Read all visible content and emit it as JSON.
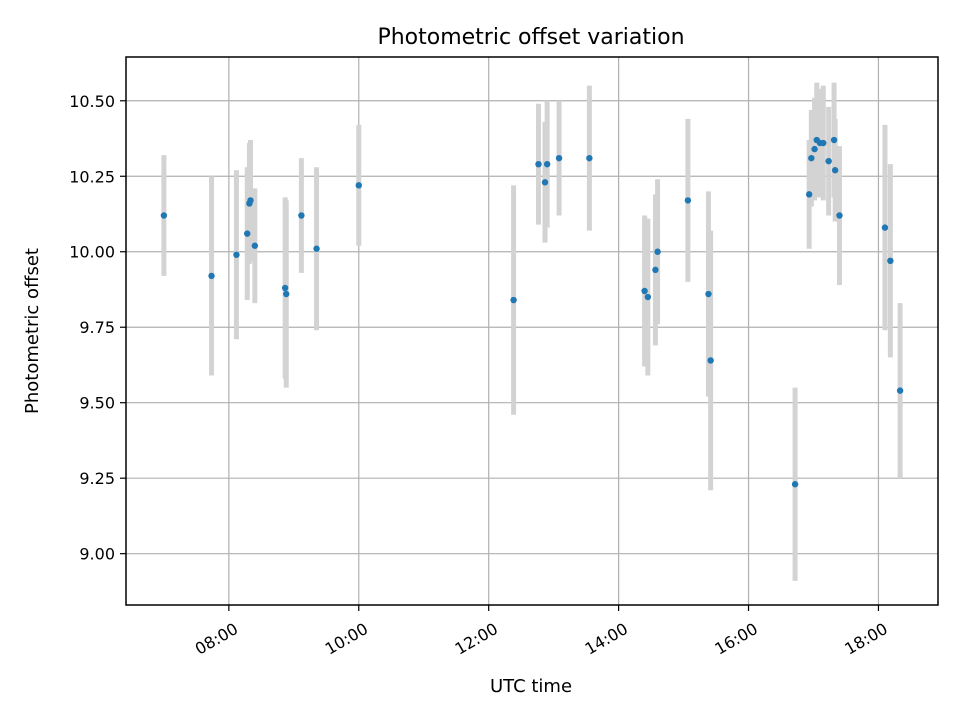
{
  "chart_data": {
    "type": "scatter",
    "title": "Photometric offset variation",
    "xlabel": "UTC time",
    "ylabel": "Photometric offset",
    "xlim": [
      "06:25",
      "18:55"
    ],
    "ylim": [
      8.83,
      10.645
    ],
    "grid": true,
    "x_ticks": [
      "08:00",
      "10:00",
      "12:00",
      "14:00",
      "16:00",
      "18:00"
    ],
    "y_ticks": [
      "9.00",
      "9.25",
      "9.50",
      "9.75",
      "10.00",
      "10.25",
      "10.50"
    ],
    "colors": {
      "point": "#1f77b4",
      "error_bar": "#d3d3d3",
      "grid": "#b0b0b0"
    },
    "series": [
      {
        "points": [
          {
            "x": "07:00",
            "y": 10.12,
            "err": 0.2
          },
          {
            "x": "07:44",
            "y": 9.92,
            "err": 0.33
          },
          {
            "x": "08:07",
            "y": 9.99,
            "err": 0.28
          },
          {
            "x": "08:17",
            "y": 10.06,
            "err": 0.22
          },
          {
            "x": "08:19",
            "y": 10.16,
            "err": 0.2
          },
          {
            "x": "08:20",
            "y": 10.17,
            "err": 0.2
          },
          {
            "x": "08:24",
            "y": 10.02,
            "err": 0.19
          },
          {
            "x": "08:52",
            "y": 9.88,
            "err": 0.3
          },
          {
            "x": "08:53",
            "y": 9.86,
            "err": 0.31
          },
          {
            "x": "09:07",
            "y": 10.12,
            "err": 0.19
          },
          {
            "x": "09:21",
            "y": 10.01,
            "err": 0.27
          },
          {
            "x": "10:00",
            "y": 10.22,
            "err": 0.2
          },
          {
            "x": "12:23",
            "y": 9.84,
            "err": 0.38
          },
          {
            "x": "12:46",
            "y": 10.29,
            "err": 0.2
          },
          {
            "x": "12:52",
            "y": 10.23,
            "err": 0.2
          },
          {
            "x": "12:54",
            "y": 10.29,
            "err": 0.21
          },
          {
            "x": "13:05",
            "y": 10.31,
            "err": 0.19
          },
          {
            "x": "13:33",
            "y": 10.31,
            "err": 0.24
          },
          {
            "x": "14:24",
            "y": 9.87,
            "err": 0.25
          },
          {
            "x": "14:27",
            "y": 9.85,
            "err": 0.26
          },
          {
            "x": "14:34",
            "y": 9.94,
            "err": 0.25
          },
          {
            "x": "14:36",
            "y": 10.0,
            "err": 0.24
          },
          {
            "x": "15:04",
            "y": 10.17,
            "err": 0.27
          },
          {
            "x": "15:23",
            "y": 9.86,
            "err": 0.34
          },
          {
            "x": "15:25",
            "y": 9.64,
            "err": 0.43
          },
          {
            "x": "16:43",
            "y": 9.23,
            "err": 0.32
          },
          {
            "x": "16:56",
            "y": 10.19,
            "err": 0.18
          },
          {
            "x": "16:58",
            "y": 10.31,
            "err": 0.16
          },
          {
            "x": "17:01",
            "y": 10.34,
            "err": 0.17
          },
          {
            "x": "17:03",
            "y": 10.37,
            "err": 0.19
          },
          {
            "x": "17:06",
            "y": 10.36,
            "err": 0.18
          },
          {
            "x": "17:09",
            "y": 10.36,
            "err": 0.19
          },
          {
            "x": "17:14",
            "y": 10.3,
            "err": 0.18
          },
          {
            "x": "17:19",
            "y": 10.37,
            "err": 0.19
          },
          {
            "x": "17:20",
            "y": 10.27,
            "err": 0.17
          },
          {
            "x": "17:24",
            "y": 10.12,
            "err": 0.23
          },
          {
            "x": "18:06",
            "y": 10.08,
            "err": 0.34
          },
          {
            "x": "18:11",
            "y": 9.97,
            "err": 0.32
          },
          {
            "x": "18:20",
            "y": 9.54,
            "err": 0.29
          }
        ]
      }
    ]
  }
}
